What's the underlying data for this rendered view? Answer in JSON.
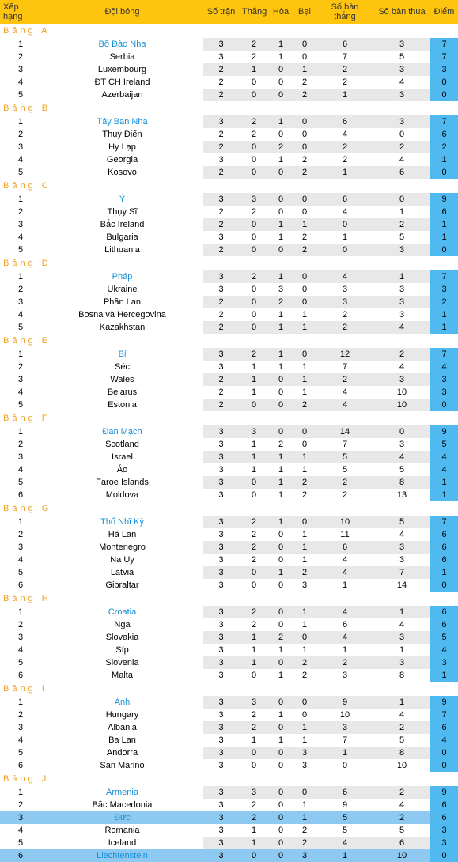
{
  "headers": [
    "Xếp hạng",
    "Đội bóng",
    "Số trận",
    "Thắng",
    "Hòa",
    "Bại",
    "Số bàn thắng",
    "Số bàn thua",
    "Điểm"
  ],
  "header_bg": "#ffc40d",
  "row_alt_bg": "#e8e8e8",
  "points_bg": "#4fb9f0",
  "highlight_bg": "#8ec9f2",
  "link_color": "#178fd6",
  "groups": [
    {
      "label": "Bảng A",
      "rows": [
        {
          "r": 1,
          "team": "Bồ Đào Nha",
          "link": true,
          "st": 3,
          "w": 2,
          "d": 1,
          "l": 0,
          "gf": 6,
          "ga": 3,
          "pt": 7
        },
        {
          "r": 2,
          "team": "Serbia",
          "st": 3,
          "w": 2,
          "d": 1,
          "l": 0,
          "gf": 7,
          "ga": 5,
          "pt": 7
        },
        {
          "r": 3,
          "team": "Luxembourg",
          "st": 2,
          "w": 1,
          "d": 0,
          "l": 1,
          "gf": 2,
          "ga": 3,
          "pt": 3
        },
        {
          "r": 4,
          "team": "ĐT CH Ireland",
          "st": 2,
          "w": 0,
          "d": 0,
          "l": 2,
          "gf": 2,
          "ga": 4,
          "pt": 0
        },
        {
          "r": 5,
          "team": "Azerbaijan",
          "st": 2,
          "w": 0,
          "d": 0,
          "l": 2,
          "gf": 1,
          "ga": 3,
          "pt": 0
        }
      ]
    },
    {
      "label": "Bảng B",
      "rows": [
        {
          "r": 1,
          "team": "Tây Ban Nha",
          "link": true,
          "st": 3,
          "w": 2,
          "d": 1,
          "l": 0,
          "gf": 6,
          "ga": 3,
          "pt": 7
        },
        {
          "r": 2,
          "team": "Thụy Điển",
          "st": 2,
          "w": 2,
          "d": 0,
          "l": 0,
          "gf": 4,
          "ga": 0,
          "pt": 6
        },
        {
          "r": 3,
          "team": "Hy Lạp",
          "st": 2,
          "w": 0,
          "d": 2,
          "l": 0,
          "gf": 2,
          "ga": 2,
          "pt": 2
        },
        {
          "r": 4,
          "team": "Georgia",
          "st": 3,
          "w": 0,
          "d": 1,
          "l": 2,
          "gf": 2,
          "ga": 4,
          "pt": 1
        },
        {
          "r": 5,
          "team": "Kosovo",
          "st": 2,
          "w": 0,
          "d": 0,
          "l": 2,
          "gf": 1,
          "ga": 6,
          "pt": 0
        }
      ]
    },
    {
      "label": "Bảng C",
      "rows": [
        {
          "r": 1,
          "team": "Ý",
          "link": true,
          "st": 3,
          "w": 3,
          "d": 0,
          "l": 0,
          "gf": 6,
          "ga": 0,
          "pt": 9
        },
        {
          "r": 2,
          "team": "Thụy Sĩ",
          "st": 2,
          "w": 2,
          "d": 0,
          "l": 0,
          "gf": 4,
          "ga": 1,
          "pt": 6
        },
        {
          "r": 3,
          "team": "Bắc Ireland",
          "st": 2,
          "w": 0,
          "d": 1,
          "l": 1,
          "gf": 0,
          "ga": 2,
          "pt": 1
        },
        {
          "r": 4,
          "team": "Bulgaria",
          "st": 3,
          "w": 0,
          "d": 1,
          "l": 2,
          "gf": 1,
          "ga": 5,
          "pt": 1
        },
        {
          "r": 5,
          "team": "Lithuania",
          "st": 2,
          "w": 0,
          "d": 0,
          "l": 2,
          "gf": 0,
          "ga": 3,
          "pt": 0
        }
      ]
    },
    {
      "label": "Bảng D",
      "rows": [
        {
          "r": 1,
          "team": "Pháp",
          "link": true,
          "st": 3,
          "w": 2,
          "d": 1,
          "l": 0,
          "gf": 4,
          "ga": 1,
          "pt": 7
        },
        {
          "r": 2,
          "team": "Ukraine",
          "st": 3,
          "w": 0,
          "d": 3,
          "l": 0,
          "gf": 3,
          "ga": 3,
          "pt": 3
        },
        {
          "r": 3,
          "team": "Phần Lan",
          "st": 2,
          "w": 0,
          "d": 2,
          "l": 0,
          "gf": 3,
          "ga": 3,
          "pt": 2
        },
        {
          "r": 4,
          "team": "Bosna và Hercegovina",
          "st": 2,
          "w": 0,
          "d": 1,
          "l": 1,
          "gf": 2,
          "ga": 3,
          "pt": 1
        },
        {
          "r": 5,
          "team": "Kazakhstan",
          "st": 2,
          "w": 0,
          "d": 1,
          "l": 1,
          "gf": 2,
          "ga": 4,
          "pt": 1
        }
      ]
    },
    {
      "label": "Bảng E",
      "rows": [
        {
          "r": 1,
          "team": "Bỉ",
          "link": true,
          "st": 3,
          "w": 2,
          "d": 1,
          "l": 0,
          "gf": 12,
          "ga": 2,
          "pt": 7
        },
        {
          "r": 2,
          "team": "Séc",
          "st": 3,
          "w": 1,
          "d": 1,
          "l": 1,
          "gf": 7,
          "ga": 4,
          "pt": 4
        },
        {
          "r": 3,
          "team": "Wales",
          "st": 2,
          "w": 1,
          "d": 0,
          "l": 1,
          "gf": 2,
          "ga": 3,
          "pt": 3
        },
        {
          "r": 4,
          "team": "Belarus",
          "st": 2,
          "w": 1,
          "d": 0,
          "l": 1,
          "gf": 4,
          "ga": 10,
          "pt": 3
        },
        {
          "r": 5,
          "team": "Estonia",
          "st": 2,
          "w": 0,
          "d": 0,
          "l": 2,
          "gf": 4,
          "ga": 10,
          "pt": 0
        }
      ]
    },
    {
      "label": "Bảng F",
      "rows": [
        {
          "r": 1,
          "team": "Đan Mạch",
          "link": true,
          "st": 3,
          "w": 3,
          "d": 0,
          "l": 0,
          "gf": 14,
          "ga": 0,
          "pt": 9
        },
        {
          "r": 2,
          "team": "Scotland",
          "st": 3,
          "w": 1,
          "d": 2,
          "l": 0,
          "gf": 7,
          "ga": 3,
          "pt": 5
        },
        {
          "r": 3,
          "team": "Israel",
          "st": 3,
          "w": 1,
          "d": 1,
          "l": 1,
          "gf": 5,
          "ga": 4,
          "pt": 4
        },
        {
          "r": 4,
          "team": "Áo",
          "st": 3,
          "w": 1,
          "d": 1,
          "l": 1,
          "gf": 5,
          "ga": 5,
          "pt": 4
        },
        {
          "r": 5,
          "team": "Faroe Islands",
          "st": 3,
          "w": 0,
          "d": 1,
          "l": 2,
          "gf": 2,
          "ga": 8,
          "pt": 1
        },
        {
          "r": 6,
          "team": "Moldova",
          "st": 3,
          "w": 0,
          "d": 1,
          "l": 2,
          "gf": 2,
          "ga": 13,
          "pt": 1
        }
      ]
    },
    {
      "label": "Bảng G",
      "rows": [
        {
          "r": 1,
          "team": "Thổ Nhĩ Kỳ",
          "link": true,
          "st": 3,
          "w": 2,
          "d": 1,
          "l": 0,
          "gf": 10,
          "ga": 5,
          "pt": 7
        },
        {
          "r": 2,
          "team": "Hà Lan",
          "st": 3,
          "w": 2,
          "d": 0,
          "l": 1,
          "gf": 11,
          "ga": 4,
          "pt": 6
        },
        {
          "r": 3,
          "team": "Montenegro",
          "st": 3,
          "w": 2,
          "d": 0,
          "l": 1,
          "gf": 6,
          "ga": 3,
          "pt": 6
        },
        {
          "r": 4,
          "team": "Na Uy",
          "st": 3,
          "w": 2,
          "d": 0,
          "l": 1,
          "gf": 4,
          "ga": 3,
          "pt": 6
        },
        {
          "r": 5,
          "team": "Latvia",
          "st": 3,
          "w": 0,
          "d": 1,
          "l": 2,
          "gf": 4,
          "ga": 7,
          "pt": 1
        },
        {
          "r": 6,
          "team": "Gibraltar",
          "st": 3,
          "w": 0,
          "d": 0,
          "l": 3,
          "gf": 1,
          "ga": 14,
          "pt": 0
        }
      ]
    },
    {
      "label": "Bảng H",
      "rows": [
        {
          "r": 1,
          "team": "Croatia",
          "link": true,
          "st": 3,
          "w": 2,
          "d": 0,
          "l": 1,
          "gf": 4,
          "ga": 1,
          "pt": 6
        },
        {
          "r": 2,
          "team": "Nga",
          "st": 3,
          "w": 2,
          "d": 0,
          "l": 1,
          "gf": 6,
          "ga": 4,
          "pt": 6
        },
        {
          "r": 3,
          "team": "Slovakia",
          "st": 3,
          "w": 1,
          "d": 2,
          "l": 0,
          "gf": 4,
          "ga": 3,
          "pt": 5
        },
        {
          "r": 4,
          "team": "Síp",
          "st": 3,
          "w": 1,
          "d": 1,
          "l": 1,
          "gf": 1,
          "ga": 1,
          "pt": 4
        },
        {
          "r": 5,
          "team": "Slovenia",
          "st": 3,
          "w": 1,
          "d": 0,
          "l": 2,
          "gf": 2,
          "ga": 3,
          "pt": 3
        },
        {
          "r": 6,
          "team": "Malta",
          "st": 3,
          "w": 0,
          "d": 1,
          "l": 2,
          "gf": 3,
          "ga": 8,
          "pt": 1
        }
      ]
    },
    {
      "label": "Bảng I",
      "rows": [
        {
          "r": 1,
          "team": "Anh",
          "link": true,
          "st": 3,
          "w": 3,
          "d": 0,
          "l": 0,
          "gf": 9,
          "ga": 1,
          "pt": 9
        },
        {
          "r": 2,
          "team": "Hungary",
          "st": 3,
          "w": 2,
          "d": 1,
          "l": 0,
          "gf": 10,
          "ga": 4,
          "pt": 7
        },
        {
          "r": 3,
          "team": "Albania",
          "st": 3,
          "w": 2,
          "d": 0,
          "l": 1,
          "gf": 3,
          "ga": 2,
          "pt": 6
        },
        {
          "r": 4,
          "team": "Ba Lan",
          "st": 3,
          "w": 1,
          "d": 1,
          "l": 1,
          "gf": 7,
          "ga": 5,
          "pt": 4
        },
        {
          "r": 5,
          "team": "Andorra",
          "st": 3,
          "w": 0,
          "d": 0,
          "l": 3,
          "gf": 1,
          "ga": 8,
          "pt": 0
        },
        {
          "r": 6,
          "team": "San Marino",
          "st": 3,
          "w": 0,
          "d": 0,
          "l": 3,
          "gf": 0,
          "ga": 10,
          "pt": 0
        }
      ]
    },
    {
      "label": "Bảng J",
      "rows": [
        {
          "r": 1,
          "team": "Armenia",
          "link": true,
          "st": 3,
          "w": 3,
          "d": 0,
          "l": 0,
          "gf": 6,
          "ga": 2,
          "pt": 9
        },
        {
          "r": 2,
          "team": "Bắc Macedonia",
          "st": 3,
          "w": 2,
          "d": 0,
          "l": 1,
          "gf": 9,
          "ga": 4,
          "pt": 6
        },
        {
          "r": 3,
          "team": "Đức",
          "link": true,
          "hl": true,
          "st": 3,
          "w": 2,
          "d": 0,
          "l": 1,
          "gf": 5,
          "ga": 2,
          "pt": 6
        },
        {
          "r": 4,
          "team": "Romania",
          "st": 3,
          "w": 1,
          "d": 0,
          "l": 2,
          "gf": 5,
          "ga": 5,
          "pt": 3
        },
        {
          "r": 5,
          "team": "Iceland",
          "st": 3,
          "w": 1,
          "d": 0,
          "l": 2,
          "gf": 4,
          "ga": 6,
          "pt": 3
        },
        {
          "r": 6,
          "team": "Liechtenstein",
          "link": true,
          "hl": true,
          "st": 3,
          "w": 0,
          "d": 0,
          "l": 3,
          "gf": 1,
          "ga": 10,
          "pt": 0
        }
      ]
    }
  ]
}
